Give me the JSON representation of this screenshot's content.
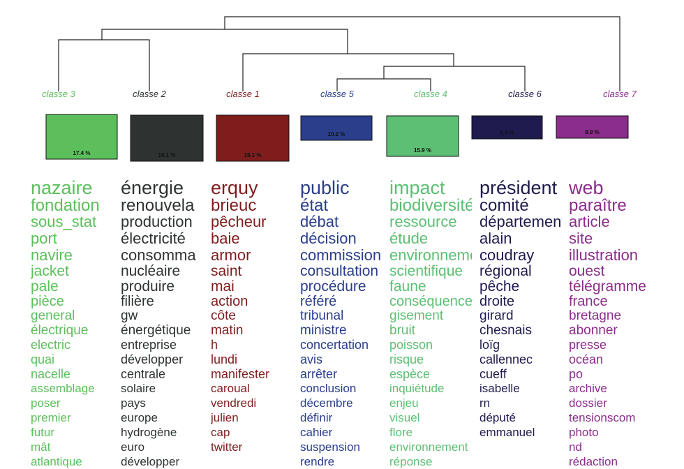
{
  "chart_data": {
    "type": "dendrogram",
    "classes": [
      {
        "label": "classe  3",
        "percent_label": "17.4 %",
        "percent": 17.4,
        "color": "#5cbf5c",
        "words": [
          "nazaire",
          "fondation",
          "sous_stat",
          "port",
          "navire",
          "jacket",
          "pale",
          "pièce",
          "general",
          "électrique",
          "electric",
          "quai",
          "nacelle",
          "assemblage",
          "poser",
          "premier",
          "futur",
          "mât",
          "atlantique"
        ]
      },
      {
        "label": "classe  2",
        "percent_label": "19.1 %",
        "percent": 19.1,
        "color": "#2e3332",
        "words": [
          "énergie",
          "renouvela",
          "production",
          "électricité",
          "consomma",
          "nucléaire",
          "produire",
          "filière",
          "gw",
          "énergétique",
          "entreprise",
          "développer",
          "centrale",
          "solaire",
          "pays",
          "europe",
          "hydrogène",
          "euro",
          "développer"
        ]
      },
      {
        "label": "classe  1",
        "percent_label": "19.1 %",
        "percent": 19.1,
        "color": "#7f1d1d",
        "words": [
          "erquy",
          "brieuc",
          "pêcheur",
          "baie",
          "armor",
          "saint",
          "mai",
          "action",
          "côte",
          "matin",
          "h",
          "lundi",
          "manifester",
          "caroual",
          "vendredi",
          "julien",
          "cap",
          "twitter"
        ]
      },
      {
        "label": "classe  5",
        "percent_label": "10.2 %",
        "percent": 10.2,
        "color": "#2a3e8c",
        "words": [
          "public",
          "état",
          "débat",
          "décision",
          "commission",
          "consultation",
          "procédure",
          "référé",
          "tribunal",
          "ministre",
          "concertation",
          "avis",
          "arrêter",
          "conclusion",
          "décembre",
          "définir",
          "cahier",
          "suspension",
          "rendre"
        ]
      },
      {
        "label": "classe  4",
        "percent_label": "15.9 %",
        "percent": 15.9,
        "color": "#5cbf73",
        "words": [
          "impact",
          "biodiversité",
          "ressource",
          "étude",
          "environnement",
          "scientifique",
          "faune",
          "conséquence",
          "gisement",
          "bruit",
          "poisson",
          "risque",
          "espèce",
          "inquiétude",
          "enjeu",
          "visuel",
          "flore",
          "environnement",
          "réponse"
        ]
      },
      {
        "label": "classe  6",
        "percent_label": "9.4 %",
        "percent": 9.4,
        "color": "#1f1b4f",
        "words": [
          "président",
          "comité",
          "départemental",
          "alain",
          "coudray",
          "régional",
          "pêche",
          "droite",
          "girard",
          "chesnais",
          "loïg",
          "callennec",
          "cueff",
          "isabelle",
          "rn",
          "député",
          "emmanuel"
        ]
      },
      {
        "label": "classe  7",
        "percent_label": "8.9 %",
        "percent": 8.9,
        "color": "#8b2d8b",
        "words": [
          "web",
          "paraître",
          "article",
          "site",
          "illustration",
          "ouest",
          "télégramme",
          "france",
          "bretagne",
          "abonner",
          "presse",
          "océan",
          "po",
          "archive",
          "dossier",
          "tensionscom",
          "photo",
          "nd",
          "rédaction"
        ]
      }
    ]
  }
}
